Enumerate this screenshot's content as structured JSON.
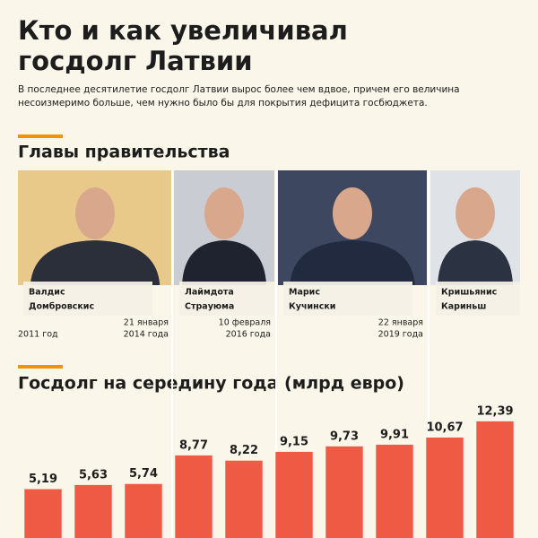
{
  "header": {
    "title": [
      "Кто и как увеличивал",
      "госдолг Латвии"
    ],
    "subtitle": [
      "В последнее десятилетие госдолг Латвии вырос более чем вдвое, причем его величина",
      "несоизмеримо больше, чем нужно было бы для покрытия дефицита госбюджета."
    ]
  },
  "leaders_section": {
    "heading": "Главы правительства",
    "start": "2011 год",
    "leaders": [
      {
        "name": [
          "Валдис",
          "Домбровскис"
        ],
        "end": [
          "21 января",
          "2014 года"
        ]
      },
      {
        "name": [
          "Лаймдота",
          "Страуюма"
        ],
        "end": [
          "10 февраля",
          "2016 года"
        ]
      },
      {
        "name": [
          "Марис",
          "Кучински"
        ],
        "end": [
          "22 января",
          "2019 года"
        ]
      },
      {
        "name": [
          "Кришьянис",
          "Кариньш"
        ]
      }
    ]
  },
  "chart_data": {
    "type": "bar",
    "title": "Госдолг на середину года (млрд евро)",
    "values": [
      5.19,
      5.63,
      5.74,
      8.77,
      8.22,
      9.15,
      9.73,
      9.91,
      10.67,
      12.39
    ],
    "value_labels": [
      "5,19",
      "5,63",
      "5,74",
      "8,77",
      "8,22",
      "9,15",
      "9,73",
      "9,91",
      "10,67",
      "12,39"
    ],
    "color": "#ee5a43",
    "ylim": [
      0,
      14
    ]
  }
}
